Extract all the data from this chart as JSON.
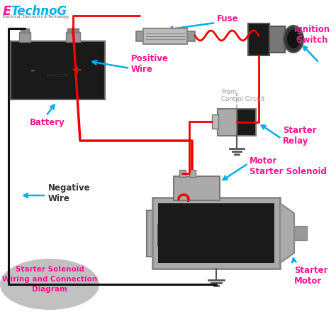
{
  "bg_color": "#ffffff",
  "title_e": "E",
  "title_technog": "TechnoG",
  "title_sub": "Electrical, Electronics & Technology",
  "label_fuse": "Fuse",
  "label_ignition": "Ignition\nSwitch",
  "label_battery": "Battery",
  "label_positive": "Positive\nWire",
  "label_negative": "Negative\nWire",
  "label_relay": "Starter\nRelay",
  "label_from_cc": "From\nControl Circuit",
  "label_solenoid": "Motor\nStarter Solenoid",
  "label_motor": "Starter\nMotor",
  "label_diagram": "Starter Solenoid\nWiring and Connection\nDiagram",
  "color_cyan": "#00AEEF",
  "color_magenta": "#FF1493",
  "color_red": "#EE0000",
  "color_black": "#111111",
  "color_dark_gray": "#444444",
  "color_gray": "#888888",
  "color_light_gray": "#AAAAAA",
  "color_dark": "#1a1a1a",
  "color_relay_gray": "#999999"
}
